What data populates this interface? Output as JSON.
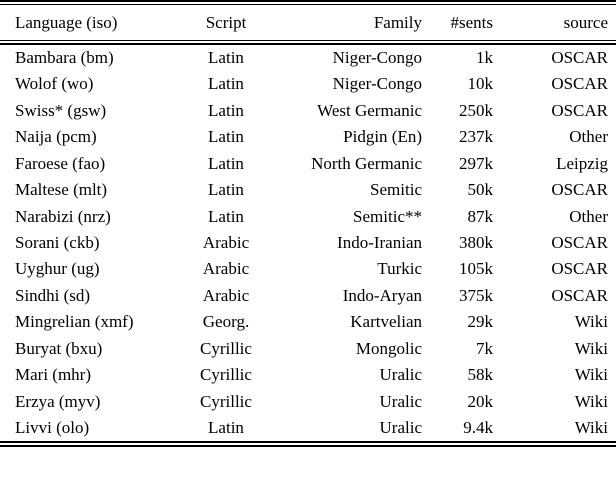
{
  "table": {
    "columns": [
      {
        "label": "Language (iso)",
        "align": "left"
      },
      {
        "label": "Script",
        "align": "center"
      },
      {
        "label": "Family",
        "align": "right"
      },
      {
        "label": "#sents",
        "align": "right"
      },
      {
        "label": "source",
        "align": "right"
      }
    ],
    "rows": [
      {
        "language": "Bambara (bm)",
        "script": "Latin",
        "family": "Niger-Congo",
        "sents": "1k",
        "source": "OSCAR"
      },
      {
        "language": "Wolof (wo)",
        "script": "Latin",
        "family": "Niger-Congo",
        "sents": "10k",
        "source": "OSCAR"
      },
      {
        "language": "Swiss* (gsw)",
        "script": "Latin",
        "family": "West Germanic",
        "sents": "250k",
        "source": "OSCAR"
      },
      {
        "language": "Naija (pcm)",
        "script": "Latin",
        "family": "Pidgin (En)",
        "sents": "237k",
        "source": "Other"
      },
      {
        "language": "Faroese (fao)",
        "script": "Latin",
        "family": "North Germanic",
        "sents": "297k",
        "source": "Leipzig"
      },
      {
        "language": "Maltese (mlt)",
        "script": "Latin",
        "family": "Semitic",
        "sents": "50k",
        "source": "OSCAR"
      },
      {
        "language": "Narabizi (nrz)",
        "script": "Latin",
        "family": "Semitic**",
        "sents": "87k",
        "source": "Other"
      },
      {
        "language": "Sorani (ckb)",
        "script": "Arabic",
        "family": "Indo-Iranian",
        "sents": "380k",
        "source": "OSCAR"
      },
      {
        "language": "Uyghur (ug)",
        "script": "Arabic",
        "family": "Turkic",
        "sents": "105k",
        "source": "OSCAR"
      },
      {
        "language": "Sindhi (sd)",
        "script": "Arabic",
        "family": "Indo-Aryan",
        "sents": "375k",
        "source": "OSCAR"
      },
      {
        "language": "Mingrelian (xmf)",
        "script": "Georg.",
        "family": "Kartvelian",
        "sents": "29k",
        "source": "Wiki"
      },
      {
        "language": "Buryat (bxu)",
        "script": "Cyrillic",
        "family": "Mongolic",
        "sents": "7k",
        "source": "Wiki"
      },
      {
        "language": "Mari (mhr)",
        "script": "Cyrillic",
        "family": "Uralic",
        "sents": "58k",
        "source": "Wiki"
      },
      {
        "language": "Erzya (myv)",
        "script": "Cyrillic",
        "family": "Uralic",
        "sents": "20k",
        "source": "Wiki"
      },
      {
        "language": "Livvi (olo)",
        "script": "Latin",
        "family": "Uralic",
        "sents": "9.4k",
        "source": "Wiki"
      }
    ]
  }
}
